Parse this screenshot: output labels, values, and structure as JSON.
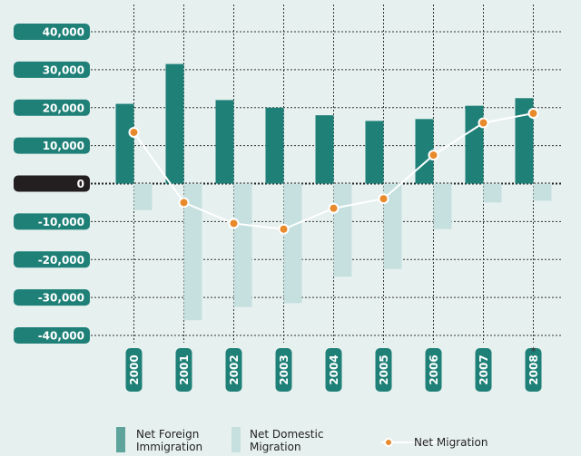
{
  "chart_data": {
    "type": "bar_line",
    "categories": [
      "2000",
      "2001",
      "2002",
      "2003",
      "2004",
      "2005",
      "2006",
      "2007",
      "2008"
    ],
    "annotations": [
      {
        "text": "*",
        "category": "2008"
      }
    ],
    "series": [
      {
        "name": "Net Foreign Immigration",
        "type": "bar",
        "color": "#1f8078",
        "values": [
          21000,
          31500,
          22000,
          20000,
          18000,
          16500,
          17000,
          20500,
          22500
        ]
      },
      {
        "name": "Net Domestic Migration",
        "type": "bar",
        "color": "#c5e0df",
        "values": [
          -7000,
          -36000,
          -32500,
          -31500,
          -24500,
          -22500,
          -12000,
          -5000,
          -4500
        ]
      },
      {
        "name": "Net Migration",
        "type": "line",
        "color": "#ffffff",
        "marker_color": "#e8892b",
        "values": [
          13500,
          -5000,
          -10500,
          -12000,
          -6500,
          -4000,
          7500,
          16000,
          18500
        ]
      }
    ],
    "ylim": [
      -40000,
      40000
    ],
    "yticks": [
      {
        "value": 40000,
        "label": "40,000"
      },
      {
        "value": 30000,
        "label": "30,000"
      },
      {
        "value": 20000,
        "label": "20,000"
      },
      {
        "value": 10000,
        "label": "10,000"
      },
      0,
      {
        "value": -10000,
        "label": "-10,000"
      },
      {
        "value": -20000,
        "label": "-20,000"
      },
      {
        "value": -30000,
        "label": "-30,000"
      },
      {
        "value": -40000,
        "label": "-40,000"
      }
    ],
    "grid": true
  }
}
